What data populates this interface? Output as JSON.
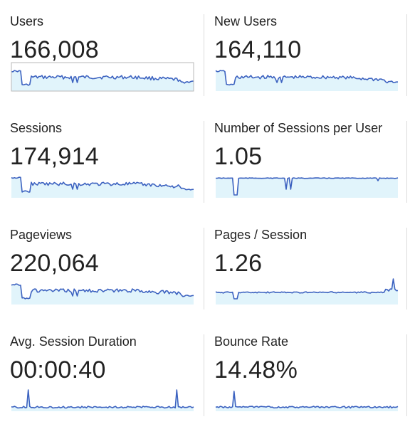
{
  "metrics": [
    {
      "label": "Users",
      "value": "166,008",
      "trend": "users"
    },
    {
      "label": "New Users",
      "value": "164,110",
      "trend": "users"
    },
    {
      "label": "Sessions",
      "value": "174,914",
      "trend": "users"
    },
    {
      "label": "Number of Sessions per User",
      "value": "1.05",
      "trend": "flat_dips"
    },
    {
      "label": "Pageviews",
      "value": "220,064",
      "trend": "users"
    },
    {
      "label": "Pages / Session",
      "value": "1.26",
      "trend": "flat_spike_end"
    },
    {
      "label": "Avg. Session Duration",
      "value": "00:00:40",
      "trend": "low_spikes"
    },
    {
      "label": "Bounce Rate",
      "value": "14.48%",
      "trend": "low_spike_start"
    }
  ],
  "colors": {
    "line": "#3c62c0",
    "fill": "#e1f4fb",
    "divider": "#dcdcdc"
  }
}
